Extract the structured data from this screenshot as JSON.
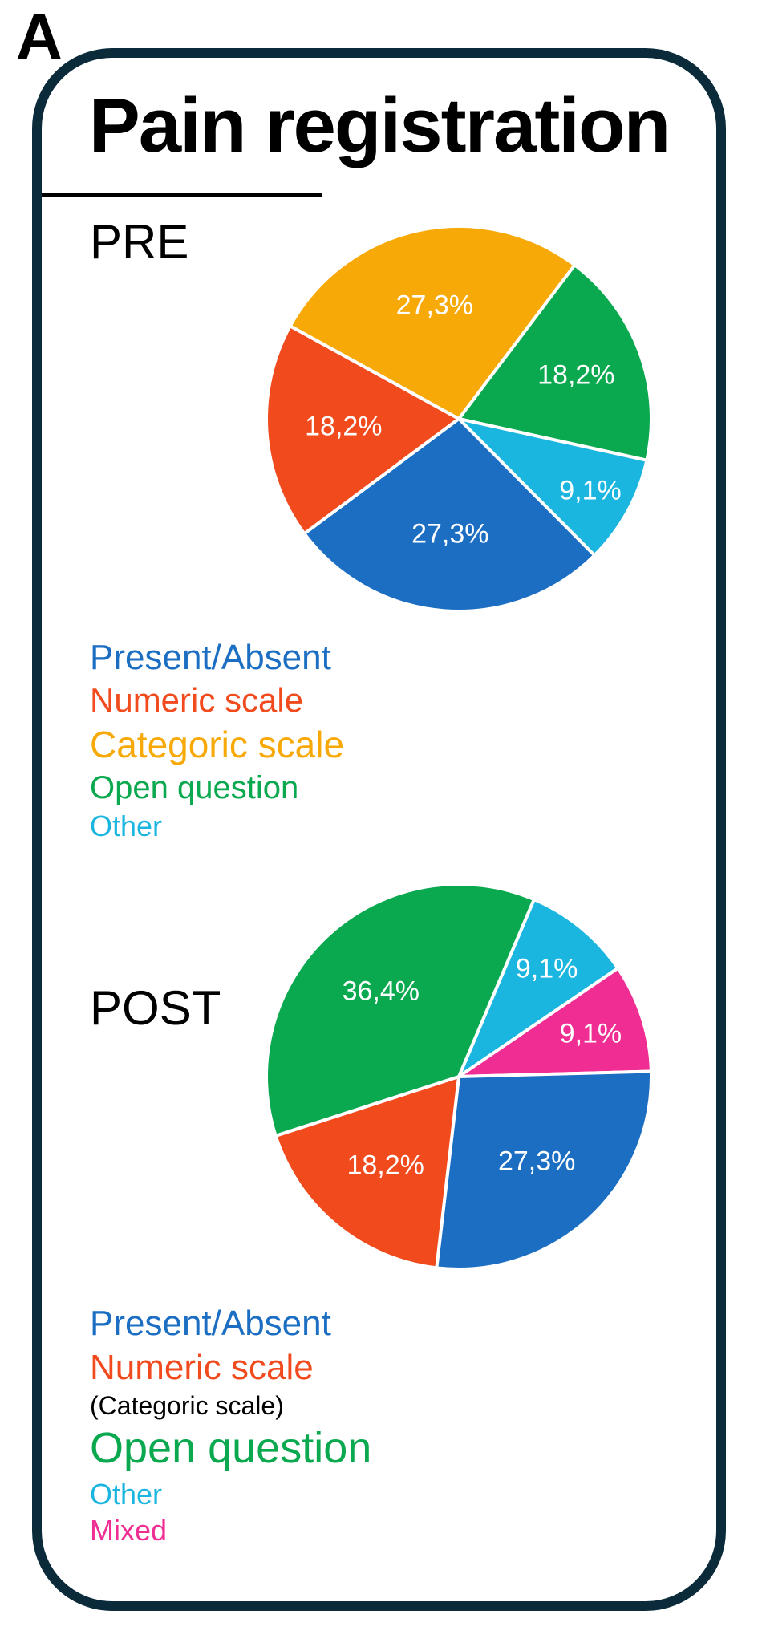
{
  "panel_label": "A",
  "title": "Pain registration",
  "border_color": "#0b2b3b",
  "background_color": "#ffffff",
  "subheads": {
    "pre": "PRE",
    "post": "POST"
  },
  "pre_chart": {
    "type": "pie",
    "start_angle_deg": 37,
    "stroke": "#ffffff",
    "stroke_width": 4,
    "radius": 240,
    "slices": [
      {
        "label": "18,2%",
        "value": 18.2,
        "color": "#0aa84f",
        "label_color": "#ffffff",
        "label_r": 0.65
      },
      {
        "label": "9,1%",
        "value": 9.1,
        "color": "#1bb6e0",
        "label_color": "#ffffff",
        "label_r": 0.78
      },
      {
        "label": "27,3%",
        "value": 27.3,
        "color": "#1b6ec2",
        "label_color": "#ffffff",
        "label_r": 0.6
      },
      {
        "label": "18,2%",
        "value": 18.2,
        "color": "#f04a1d",
        "label_color": "#ffffff",
        "label_r": 0.6
      },
      {
        "label": "27,3%",
        "value": 27.3,
        "color": "#f7a908",
        "label_color": "#ffffff",
        "label_r": 0.6
      }
    ]
  },
  "pre_legend": {
    "items": [
      {
        "text": "Present/Absent",
        "color": "#1b6ec2",
        "font_size": 44
      },
      {
        "text": "Numeric scale",
        "color": "#f04a1d",
        "font_size": 42
      },
      {
        "text": "Categoric scale",
        "color": "#f7a908",
        "font_size": 46
      },
      {
        "text": "Open question",
        "color": "#0aa84f",
        "font_size": 40
      },
      {
        "text": "Other",
        "color": "#1bb6e0",
        "font_size": 36
      }
    ]
  },
  "post_chart": {
    "type": "pie",
    "start_angle_deg": 23,
    "stroke": "#ffffff",
    "stroke_width": 4,
    "radius": 240,
    "slices": [
      {
        "label": "9,1%",
        "value": 9.1,
        "color": "#1bb6e0",
        "label_color": "#ffffff",
        "label_r": 0.72
      },
      {
        "label": "9,1%",
        "value": 9.1,
        "color": "#ef2d93",
        "label_color": "#ffffff",
        "label_r": 0.72
      },
      {
        "label": "27,3%",
        "value": 27.3,
        "color": "#1b6ec2",
        "label_color": "#ffffff",
        "label_r": 0.6
      },
      {
        "label": "18,2%",
        "value": 18.2,
        "color": "#f04a1d",
        "label_color": "#ffffff",
        "label_r": 0.6
      },
      {
        "label": "36,4%",
        "value": 36.4,
        "color": "#0aa84f",
        "label_color": "#ffffff",
        "label_r": 0.6
      }
    ]
  },
  "post_legend": {
    "items": [
      {
        "text": "Present/Absent",
        "color": "#1b6ec2",
        "font_size": 44
      },
      {
        "text": "Numeric scale",
        "color": "#f04a1d",
        "font_size": 44
      },
      {
        "text": "(Categoric scale)",
        "color": "#000000",
        "font_size": 32
      },
      {
        "text": "Open question",
        "color": "#0aa84f",
        "font_size": 54
      },
      {
        "text": "Other",
        "color": "#1bb6e0",
        "font_size": 36
      },
      {
        "text": "Mixed",
        "color": "#ef2d93",
        "font_size": 36
      }
    ]
  }
}
